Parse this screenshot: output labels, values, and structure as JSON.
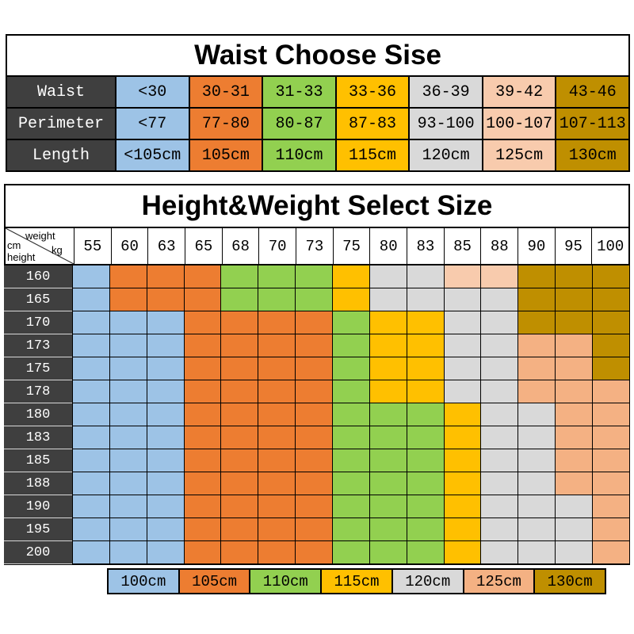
{
  "colors": {
    "blue": "#9DC3E6",
    "orange": "#ED7D31",
    "green": "#92D050",
    "yellow": "#FFC000",
    "gray": "#D9D9D9",
    "peach": "#F4B183",
    "peach_light": "#F8CBAD",
    "gold": "#BF8F00",
    "header_dark": "#3F3F3F"
  },
  "key_colors": {
    "B": "blue",
    "O": "orange",
    "G": "green",
    "Y": "yellow",
    "E": "gray",
    "P": "peach",
    "L": "peach_light",
    "D": "gold"
  },
  "waist_table": {
    "title": "Waist Choose Sise",
    "column_colors": [
      "blue",
      "orange",
      "green",
      "yellow",
      "gray",
      "peach_light",
      "gold"
    ],
    "rows": [
      {
        "label": "Waist",
        "cells": [
          "<30",
          "30-31",
          "31-33",
          "33-36",
          "36-39",
          "39-42",
          "43-46"
        ]
      },
      {
        "label": "Perimeter",
        "cells": [
          "<77",
          "77-80",
          "80-87",
          "87-83",
          "93-100",
          "100-107",
          "107-113"
        ]
      },
      {
        "label": "Length",
        "cells": [
          "<105cm",
          "105cm",
          "110cm",
          "115cm",
          "120cm",
          "125cm",
          "130cm"
        ]
      }
    ]
  },
  "hw_table": {
    "title": "Height&Weight Select Size",
    "corner": {
      "top_left": "cm",
      "top_right": "weight",
      "bottom_left": "height",
      "bottom_right": "kg"
    },
    "weights": [
      "55",
      "60",
      "63",
      "65",
      "68",
      "70",
      "73",
      "75",
      "80",
      "83",
      "85",
      "88",
      "90",
      "95",
      "100"
    ],
    "rows": [
      {
        "height": "160",
        "cells": [
          "B",
          "O",
          "O",
          "O",
          "G",
          "G",
          "G",
          "Y",
          "E",
          "E",
          "L",
          "L",
          "D",
          "D",
          "D"
        ]
      },
      {
        "height": "165",
        "cells": [
          "B",
          "O",
          "O",
          "O",
          "G",
          "G",
          "G",
          "Y",
          "E",
          "E",
          "E",
          "E",
          "D",
          "D",
          "D"
        ]
      },
      {
        "height": "170",
        "cells": [
          "B",
          "B",
          "B",
          "O",
          "O",
          "O",
          "O",
          "G",
          "Y",
          "Y",
          "E",
          "E",
          "D",
          "D",
          "D"
        ]
      },
      {
        "height": "173",
        "cells": [
          "B",
          "B",
          "B",
          "O",
          "O",
          "O",
          "O",
          "G",
          "Y",
          "Y",
          "E",
          "E",
          "P",
          "P",
          "D"
        ]
      },
      {
        "height": "175",
        "cells": [
          "B",
          "B",
          "B",
          "O",
          "O",
          "O",
          "O",
          "G",
          "Y",
          "Y",
          "E",
          "E",
          "P",
          "P",
          "D"
        ]
      },
      {
        "height": "178",
        "cells": [
          "B",
          "B",
          "B",
          "O",
          "O",
          "O",
          "O",
          "G",
          "Y",
          "Y",
          "E",
          "E",
          "P",
          "P",
          "P"
        ]
      },
      {
        "height": "180",
        "cells": [
          "B",
          "B",
          "B",
          "O",
          "O",
          "O",
          "O",
          "G",
          "G",
          "G",
          "Y",
          "E",
          "E",
          "P",
          "P"
        ]
      },
      {
        "height": "183",
        "cells": [
          "B",
          "B",
          "B",
          "O",
          "O",
          "O",
          "O",
          "G",
          "G",
          "G",
          "Y",
          "E",
          "E",
          "P",
          "P"
        ]
      },
      {
        "height": "185",
        "cells": [
          "B",
          "B",
          "B",
          "O",
          "O",
          "O",
          "O",
          "G",
          "G",
          "G",
          "Y",
          "E",
          "E",
          "P",
          "P"
        ]
      },
      {
        "height": "188",
        "cells": [
          "B",
          "B",
          "B",
          "O",
          "O",
          "O",
          "O",
          "G",
          "G",
          "G",
          "Y",
          "E",
          "E",
          "P",
          "P"
        ]
      },
      {
        "height": "190",
        "cells": [
          "B",
          "B",
          "B",
          "O",
          "O",
          "O",
          "O",
          "G",
          "G",
          "G",
          "Y",
          "E",
          "E",
          "E",
          "P"
        ]
      },
      {
        "height": "195",
        "cells": [
          "B",
          "B",
          "B",
          "O",
          "O",
          "O",
          "O",
          "G",
          "G",
          "G",
          "Y",
          "E",
          "E",
          "E",
          "P"
        ]
      },
      {
        "height": "200",
        "cells": [
          "B",
          "B",
          "B",
          "O",
          "O",
          "O",
          "O",
          "G",
          "G",
          "G",
          "Y",
          "E",
          "E",
          "E",
          "P"
        ]
      }
    ]
  },
  "legend": {
    "items": [
      {
        "label": "100cm",
        "color": "blue"
      },
      {
        "label": "105cm",
        "color": "orange"
      },
      {
        "label": "110cm",
        "color": "green"
      },
      {
        "label": "115cm",
        "color": "yellow"
      },
      {
        "label": "120cm",
        "color": "gray"
      },
      {
        "label": "125cm",
        "color": "peach"
      },
      {
        "label": "130cm",
        "color": "gold"
      }
    ]
  },
  "chart_data": [
    {
      "type": "table",
      "title": "Waist Choose Sise",
      "row_labels": [
        "Waist",
        "Perimeter",
        "Length"
      ],
      "rows": [
        [
          "<30",
          "30-31",
          "31-33",
          "33-36",
          "36-39",
          "39-42",
          "43-46"
        ],
        [
          "<77",
          "77-80",
          "80-87",
          "87-83",
          "93-100",
          "100-107",
          "107-113"
        ],
        [
          "<105cm",
          "105cm",
          "110cm",
          "115cm",
          "120cm",
          "125cm",
          "130cm"
        ]
      ]
    },
    {
      "type": "heatmap",
      "title": "Height&Weight Select Size",
      "xlabel": "weight kg",
      "ylabel": "height cm",
      "x": [
        55,
        60,
        63,
        65,
        68,
        70,
        73,
        75,
        80,
        83,
        85,
        88,
        90,
        95,
        100
      ],
      "y": [
        160,
        165,
        170,
        173,
        175,
        178,
        180,
        183,
        185,
        188,
        190,
        195,
        200
      ],
      "values": [
        [
          "100cm",
          "105cm",
          "105cm",
          "105cm",
          "110cm",
          "110cm",
          "110cm",
          "115cm",
          "120cm",
          "120cm",
          "125cm",
          "125cm",
          "130cm",
          "130cm",
          "130cm"
        ],
        [
          "100cm",
          "105cm",
          "105cm",
          "105cm",
          "110cm",
          "110cm",
          "110cm",
          "115cm",
          "120cm",
          "120cm",
          "120cm",
          "120cm",
          "130cm",
          "130cm",
          "130cm"
        ],
        [
          "100cm",
          "100cm",
          "100cm",
          "105cm",
          "105cm",
          "105cm",
          "105cm",
          "110cm",
          "115cm",
          "115cm",
          "120cm",
          "120cm",
          "130cm",
          "130cm",
          "130cm"
        ],
        [
          "100cm",
          "100cm",
          "100cm",
          "105cm",
          "105cm",
          "105cm",
          "105cm",
          "110cm",
          "115cm",
          "115cm",
          "120cm",
          "120cm",
          "125cm",
          "125cm",
          "130cm"
        ],
        [
          "100cm",
          "100cm",
          "100cm",
          "105cm",
          "105cm",
          "105cm",
          "105cm",
          "110cm",
          "115cm",
          "115cm",
          "120cm",
          "120cm",
          "125cm",
          "125cm",
          "130cm"
        ],
        [
          "100cm",
          "100cm",
          "100cm",
          "105cm",
          "105cm",
          "105cm",
          "105cm",
          "110cm",
          "115cm",
          "115cm",
          "120cm",
          "120cm",
          "125cm",
          "125cm",
          "125cm"
        ],
        [
          "100cm",
          "100cm",
          "100cm",
          "105cm",
          "105cm",
          "105cm",
          "105cm",
          "110cm",
          "110cm",
          "110cm",
          "115cm",
          "120cm",
          "120cm",
          "125cm",
          "125cm"
        ],
        [
          "100cm",
          "100cm",
          "100cm",
          "105cm",
          "105cm",
          "105cm",
          "105cm",
          "110cm",
          "110cm",
          "110cm",
          "115cm",
          "120cm",
          "120cm",
          "125cm",
          "125cm"
        ],
        [
          "100cm",
          "100cm",
          "100cm",
          "105cm",
          "105cm",
          "105cm",
          "105cm",
          "110cm",
          "110cm",
          "110cm",
          "115cm",
          "120cm",
          "120cm",
          "125cm",
          "125cm"
        ],
        [
          "100cm",
          "100cm",
          "100cm",
          "105cm",
          "105cm",
          "105cm",
          "105cm",
          "110cm",
          "110cm",
          "110cm",
          "115cm",
          "120cm",
          "120cm",
          "125cm",
          "125cm"
        ],
        [
          "100cm",
          "100cm",
          "100cm",
          "105cm",
          "105cm",
          "105cm",
          "105cm",
          "110cm",
          "110cm",
          "110cm",
          "115cm",
          "120cm",
          "120cm",
          "120cm",
          "125cm"
        ],
        [
          "100cm",
          "100cm",
          "100cm",
          "105cm",
          "105cm",
          "105cm",
          "105cm",
          "110cm",
          "110cm",
          "110cm",
          "115cm",
          "120cm",
          "120cm",
          "120cm",
          "125cm"
        ],
        [
          "100cm",
          "100cm",
          "100cm",
          "105cm",
          "105cm",
          "105cm",
          "105cm",
          "110cm",
          "110cm",
          "110cm",
          "115cm",
          "120cm",
          "120cm",
          "120cm",
          "125cm"
        ]
      ],
      "legend": [
        "100cm",
        "105cm",
        "110cm",
        "115cm",
        "120cm",
        "125cm",
        "130cm"
      ],
      "legend_position": "bottom",
      "grid": true
    }
  ]
}
